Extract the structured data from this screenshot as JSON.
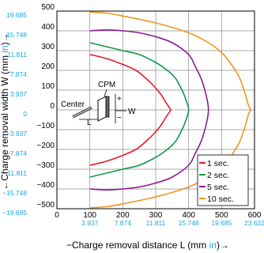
{
  "chart_data": {
    "type": "line",
    "xlabel": {
      "prefix": "−Charge removal distance L (mm ",
      "unit": "in",
      "suffix": ")→"
    },
    "ylabel": {
      "prefix": "←Charge removal width W (mm ",
      "unit": "in",
      "suffix": ")→"
    },
    "xlim": [
      0,
      600
    ],
    "ylim": [
      -500,
      500
    ],
    "grid": true,
    "legend_position": "bottom-right",
    "x_ticks_mm": [
      "0",
      "100",
      "200",
      "300",
      "400",
      "500",
      "600"
    ],
    "x_ticks_in": [
      "3.937",
      "7.874",
      "11.811",
      "15.748",
      "19.685",
      "23.622"
    ],
    "y_ticks_mm": [
      "500",
      "400",
      "300",
      "200",
      "100",
      "0",
      "−100",
      "−200",
      "−300",
      "−400",
      "−500"
    ],
    "y_ticks_in": [
      "19.685",
      "15.748",
      "11.811",
      "7.874",
      "3.937",
      "0",
      "−3.937",
      "−7.874",
      "−11.811",
      "−15.748",
      "−19.685"
    ],
    "annotations": {
      "cpm": "CPM",
      "center": "Center",
      "l": "L",
      "w": "W",
      "plus": "+",
      "minus": "−"
    },
    "series": [
      {
        "name": "1 sec.",
        "color": "#e8192c",
        "x": [
          100,
          150,
          200,
          240,
          270,
          295,
          315,
          330,
          340,
          345,
          340,
          330,
          315,
          295,
          270,
          240,
          200,
          150,
          100
        ],
        "y": [
          -280,
          -260,
          -230,
          -200,
          -160,
          -120,
          -80,
          -40,
          -15,
          0,
          15,
          40,
          80,
          120,
          160,
          200,
          230,
          260,
          280
        ]
      },
      {
        "name": "2 sec.",
        "color": "#0f9a4a",
        "x": [
          100,
          150,
          200,
          250,
          300,
          335,
          360,
          380,
          392,
          400,
          392,
          380,
          360,
          335,
          300,
          250,
          200,
          150,
          100
        ],
        "y": [
          -340,
          -320,
          -300,
          -280,
          -240,
          -200,
          -160,
          -100,
          -50,
          0,
          50,
          100,
          160,
          200,
          240,
          280,
          300,
          320,
          340
        ]
      },
      {
        "name": "5 sec.",
        "color": "#8a1a96",
        "x": [
          100,
          150,
          200,
          250,
          300,
          350,
          400,
          420,
          440,
          455,
          460,
          455,
          440,
          420,
          400,
          350,
          300,
          250,
          200,
          150,
          100
        ],
        "y": [
          -400,
          -405,
          -400,
          -390,
          -370,
          -340,
          -280,
          -220,
          -150,
          -60,
          0,
          60,
          150,
          220,
          280,
          340,
          370,
          390,
          400,
          405,
          400
        ]
      },
      {
        "name": "10 sec.",
        "color": "#f0961e",
        "x": [
          100,
          150,
          200,
          300,
          400,
          460,
          500,
          530,
          555,
          572,
          582,
          588,
          582,
          572,
          555,
          530,
          500,
          460,
          400,
          300,
          200,
          150,
          100
        ],
        "y": [
          -495,
          -490,
          -475,
          -440,
          -390,
          -340,
          -290,
          -230,
          -160,
          -80,
          -20,
          0,
          20,
          80,
          160,
          230,
          290,
          340,
          390,
          440,
          475,
          490,
          495
        ]
      }
    ]
  }
}
